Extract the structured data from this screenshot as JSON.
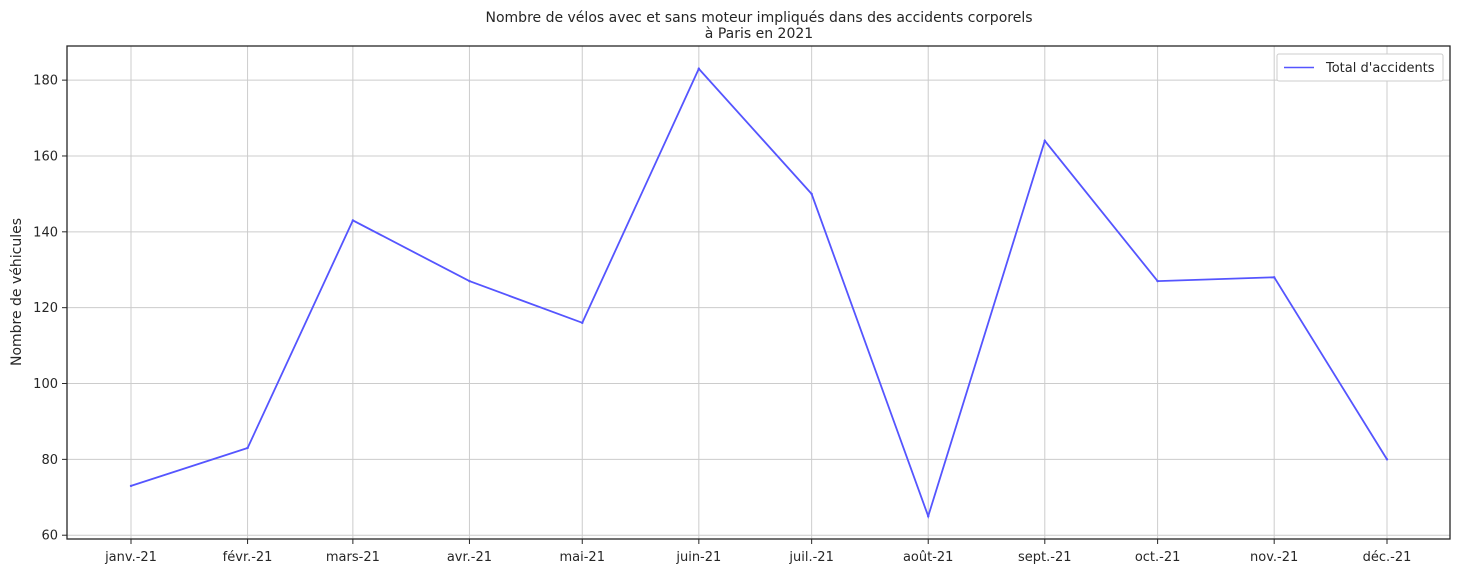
{
  "chart_data": {
    "type": "line",
    "title_line1": "Nombre de vélos avec et sans moteur impliqués dans des accidents corporels",
    "title_line2": "à Paris en 2021",
    "xlabel": "",
    "ylabel": "Nombre de véhicules",
    "categories": [
      "janv.-21",
      "févr.-21",
      "mars-21",
      "avr.-21",
      "mai-21",
      "juin-21",
      "juil.-21",
      "août-21",
      "sept.-21",
      "oct.-21",
      "nov.-21",
      "déc.-21"
    ],
    "x": [
      "2021-01-01",
      "2021-02-01",
      "2021-03-01",
      "2021-04-01",
      "2021-05-01",
      "2021-06-01",
      "2021-07-01",
      "2021-08-01",
      "2021-09-01",
      "2021-10-01",
      "2021-11-01",
      "2021-12-01"
    ],
    "series": [
      {
        "name": "Total d'accidents",
        "color": "#5555ff",
        "values": [
          73,
          83,
          143,
          127,
          116,
          183,
          150,
          65,
          164,
          127,
          128,
          80
        ]
      }
    ],
    "ylim": [
      59,
      189
    ],
    "yticks": [
      60,
      80,
      100,
      120,
      140,
      160,
      180
    ],
    "grid": true,
    "legend": "top-right"
  }
}
